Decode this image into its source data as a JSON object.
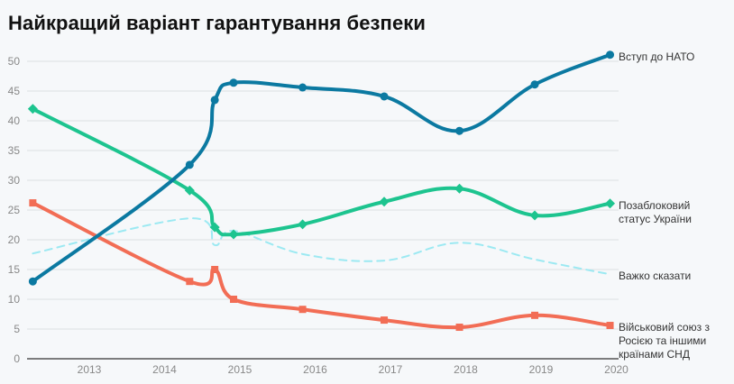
{
  "chart_data": {
    "type": "line",
    "title": "Найкращий варіант гарантування безпеки",
    "xlabel": "",
    "ylabel": "",
    "ylim": [
      0,
      50
    ],
    "yticks": [
      "0",
      "5",
      "10",
      "15",
      "20",
      "25",
      "30",
      "35",
      "40",
      "45",
      "50"
    ],
    "xticks": [
      "2013",
      "2014",
      "2015",
      "2016",
      "2017",
      "2018",
      "2019",
      "2020"
    ],
    "grid": true,
    "legend": "direct labels at line ends (right)",
    "x": [
      "2012-04",
      "2014-05",
      "2014-09",
      "2014-12",
      "2015-11",
      "2016-12",
      "2017-12",
      "2018-12",
      "2019-12"
    ],
    "series": [
      {
        "name": "Вступ до НАТО",
        "label_lines": [
          "Вступ до НАТО"
        ],
        "color": "#0b79a1",
        "marker": "circle",
        "dashed": false,
        "values": [
          13.0,
          32.6,
          43.5,
          46.4,
          45.6,
          44.1,
          38.3,
          46.1,
          51.1
        ]
      },
      {
        "name": "Позаблоковий статус України",
        "label_lines": [
          "Позаблоковий",
          "статус України"
        ],
        "color": "#1dc48f",
        "marker": "diamond",
        "dashed": false,
        "values": [
          42.0,
          28.3,
          22.1,
          20.9,
          22.6,
          26.4,
          28.6,
          24.1,
          26.1
        ]
      },
      {
        "name": "Важко сказати",
        "label_lines": [
          "Важко сказати"
        ],
        "color": "#9ce9f2",
        "marker": "none",
        "dashed": true,
        "values": [
          17.7,
          23.6,
          19.1,
          21.5,
          17.6,
          16.5,
          19.5,
          16.7,
          14.2
        ]
      },
      {
        "name": "Військовий союз з Росією та іншими країнами СНД",
        "label_lines": [
          "Військовий союз з",
          "Росією та іншими",
          "країнами СНД"
        ],
        "color": "#f26d55",
        "marker": "square",
        "dashed": false,
        "values": [
          26.2,
          13.0,
          15.0,
          10.0,
          8.3,
          6.5,
          5.3,
          7.3,
          5.6
        ]
      }
    ]
  }
}
